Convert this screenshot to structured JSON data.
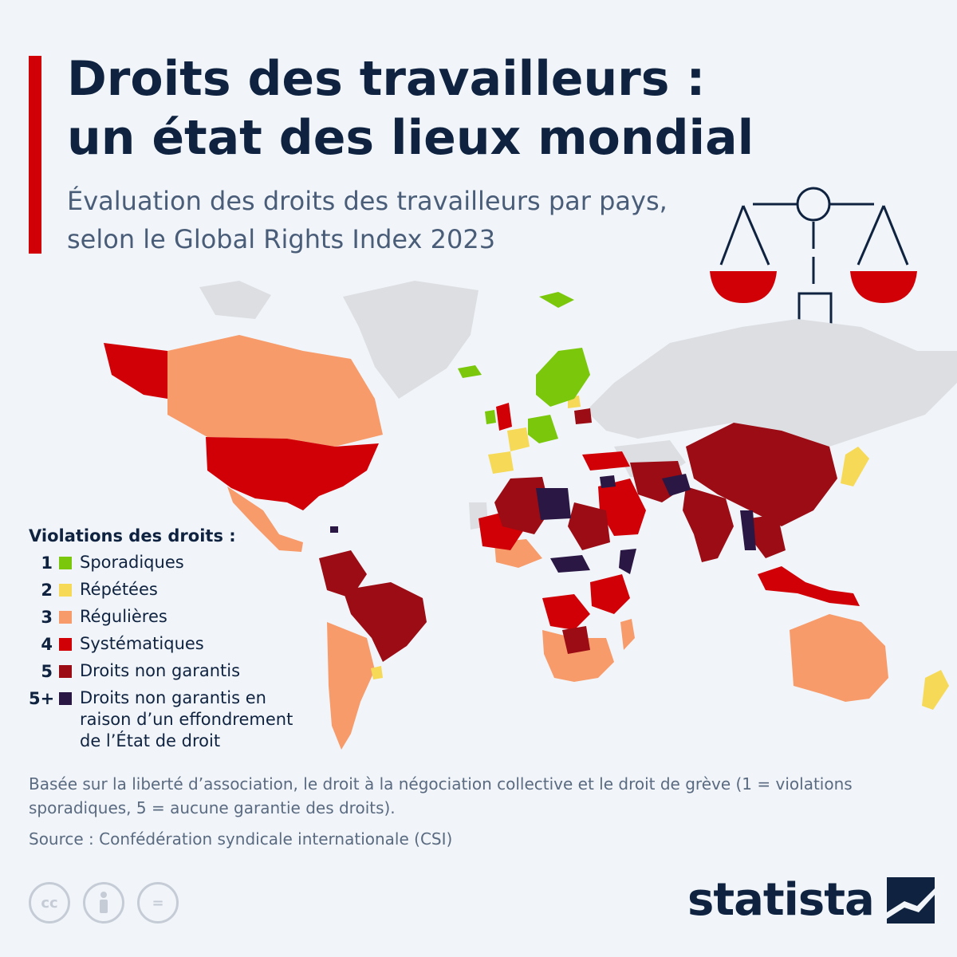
{
  "title": "Droits des travailleurs : un état des lieux mondial",
  "subtitle": "Évaluation des droits des travailleurs par pays, selon le Global Rights Index 2023",
  "legend": {
    "title": "Violations des droits :",
    "items": [
      {
        "level": "1",
        "label": "Sporadiques",
        "color": "#7ac70c"
      },
      {
        "level": "2",
        "label": "Répétées",
        "color": "#f6d957"
      },
      {
        "level": "3",
        "label": "Régulières",
        "color": "#f79b6b"
      },
      {
        "level": "4",
        "label": "Systématiques",
        "color": "#d10007"
      },
      {
        "level": "5",
        "label": "Droits non garantis",
        "color": "#9b0c14"
      },
      {
        "level": "5+",
        "label": "Droits non garantis en raison d’un effondrement de l’État de droit",
        "color": "#2a1744"
      }
    ]
  },
  "colors": {
    "no_data": "#dcdee2",
    "accent": "#d10007",
    "navy": "#0f2340"
  },
  "footnote": "Basée sur la liberté d’association, le droit à la négociation collective et le droit de grève (1 = violations sporadiques, 5 = aucune garantie des droits).",
  "source": "Source : Confédération syndicale internationale (CSI)",
  "logo": "statista",
  "icons": [
    "scales-of-justice-icon",
    "cc-icon",
    "attribution-icon",
    "no-derivatives-icon",
    "statista-logo-icon"
  ],
  "cc_labels": [
    "cc",
    "=",
    ""
  ]
}
